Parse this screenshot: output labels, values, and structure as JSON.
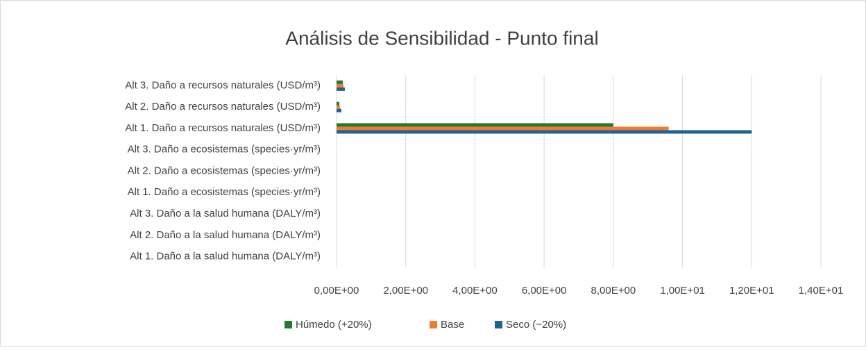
{
  "chart_data": {
    "type": "hbar",
    "title": "Análisis de Sensibilidad - Punto final",
    "categories": [
      "Alt 1. Daño a la salud humana (DALY/m³)",
      "Alt 2. Daño a la salud humana (DALY/m³)",
      "Alt 3. Daño a la salud humana (DALY/m³)",
      "Alt 1. Daño a ecosistemas (species·yr/m³)",
      "Alt 2. Daño a ecosistemas (species·yr/m³)",
      "Alt 3. Daño a ecosistemas (species·yr/m³)",
      "Alt 1. Daño a recursos naturales (USD/m³)",
      "Alt 2. Daño a recursos naturales (USD/m³)",
      "Alt 3. Daño a recursos naturales (USD/m³)"
    ],
    "series": [
      {
        "name": "Húmedo (+20%)",
        "color": "#217a2e",
        "values": [
          0,
          0,
          0,
          0,
          0,
          0,
          8.0,
          0.08,
          0.18
        ]
      },
      {
        "name": "Base",
        "color": "#f07a32",
        "values": [
          0,
          0,
          0,
          0,
          0,
          0,
          9.6,
          0.1,
          0.2
        ]
      },
      {
        "name": "Seco (−20%)",
        "color": "#1f6391",
        "values": [
          0,
          0,
          0,
          0,
          0,
          0,
          12.0,
          0.14,
          0.24
        ]
      }
    ],
    "xlim": [
      0,
      14
    ],
    "xticks": [
      {
        "value": 0,
        "label": "0,00E+00"
      },
      {
        "value": 2,
        "label": "2,00E+00"
      },
      {
        "value": 4,
        "label": "4,00E+00"
      },
      {
        "value": 6,
        "label": "6,00E+00"
      },
      {
        "value": 8,
        "label": "8,00E+00"
      },
      {
        "value": 10,
        "label": "1,00E+01"
      },
      {
        "value": 12,
        "label": "1,20E+01"
      },
      {
        "value": 14,
        "label": "1,40E+01"
      }
    ],
    "grid": true,
    "legend": "bottom"
  }
}
